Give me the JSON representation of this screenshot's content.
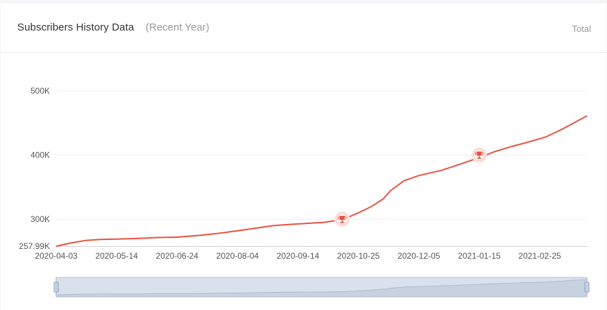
{
  "header": {
    "title": "Subscribers History Data",
    "subtitle": "(Recent Year)",
    "total_label": "Total"
  },
  "colors": {
    "line": "#e8513f",
    "grid": "#eeeeee",
    "axis": "#d6d6d6",
    "zoom_fill": "#d9e1ec",
    "zoom_border": "#b4c1d4",
    "zoom_handle": "#c6d2e2",
    "milestone_bg": "#fde3df"
  },
  "chart_data": {
    "type": "line",
    "title": "Subscribers History Data",
    "subtitle": "(Recent Year)",
    "xlabel": "",
    "ylabel": "",
    "ylim": [
      257990,
      520000
    ],
    "xlim": [
      "2020-04-03",
      "2021-03-29"
    ],
    "y_ticks": [
      {
        "value": 257990,
        "label": "257.99K"
      },
      {
        "value": 300000,
        "label": "300K"
      },
      {
        "value": 400000,
        "label": "400K"
      },
      {
        "value": 500000,
        "label": "500K"
      }
    ],
    "x_ticks": [
      "2020-04-03",
      "2020-05-14",
      "2020-06-24",
      "2020-08-04",
      "2020-09-14",
      "2020-10-25",
      "2020-12-05",
      "2021-01-15",
      "2021-02-25"
    ],
    "grid": true,
    "legend": "none",
    "icon": "trophy-icon",
    "series": [
      {
        "x": [
          "2020-04-03",
          "2020-04-13",
          "2020-04-23",
          "2020-05-03",
          "2020-05-14",
          "2020-05-28",
          "2020-06-11",
          "2020-06-24",
          "2020-07-10",
          "2020-07-22",
          "2020-08-04",
          "2020-08-16",
          "2020-08-28",
          "2020-09-09",
          "2020-09-20",
          "2020-10-01",
          "2020-10-14",
          "2020-10-25",
          "2020-11-03",
          "2020-11-11",
          "2020-11-16",
          "2020-11-25",
          "2020-12-05",
          "2020-12-20",
          "2021-01-01",
          "2021-01-15",
          "2021-01-25",
          "2021-02-07",
          "2021-02-17",
          "2021-03-01",
          "2021-03-12",
          "2021-03-29"
        ],
        "values": [
          257990,
          263000,
          267000,
          268500,
          269000,
          270000,
          271500,
          272000,
          275000,
          278000,
          282000,
          286000,
          290000,
          292000,
          293500,
          295000,
          299000,
          310000,
          320000,
          332000,
          345000,
          360000,
          368000,
          376000,
          385000,
          396000,
          405000,
          414000,
          420000,
          428000,
          440000,
          461000
        ]
      }
    ],
    "milestones": [
      {
        "x": "2020-10-14",
        "y": 300000,
        "label": "300K"
      },
      {
        "x": "2021-01-15",
        "y": 400000,
        "label": "400K"
      }
    ]
  }
}
